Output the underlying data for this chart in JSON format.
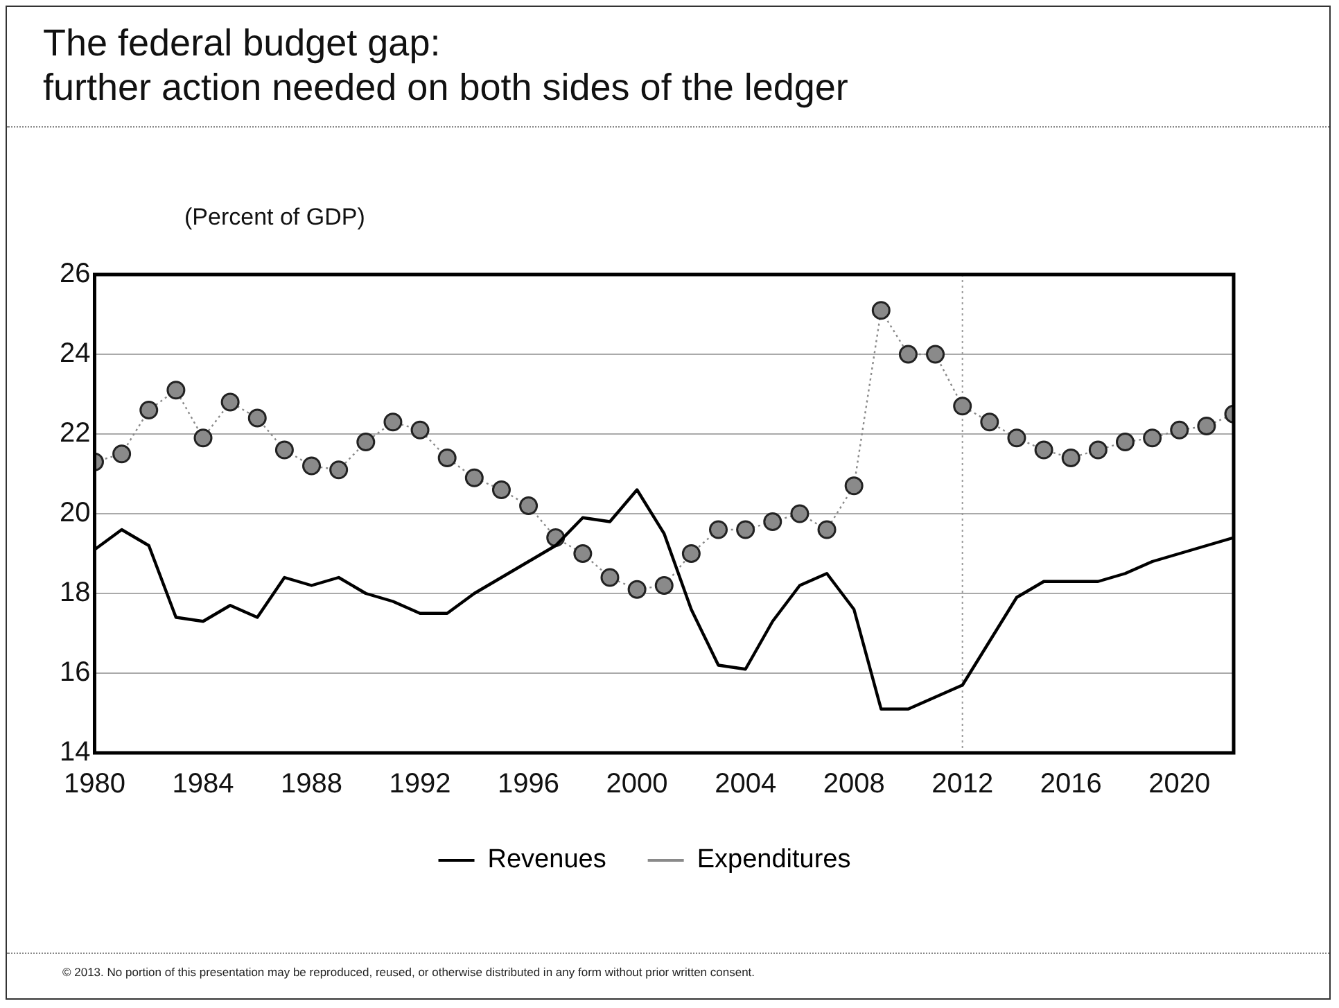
{
  "chart_data": {
    "type": "line",
    "title": "The federal budget gap:\nfurther action needed on both sides of the ledger",
    "ylabel": "(Percent of GDP)",
    "x": [
      1980,
      1981,
      1982,
      1983,
      1984,
      1985,
      1986,
      1987,
      1988,
      1989,
      1990,
      1991,
      1992,
      1993,
      1994,
      1995,
      1996,
      1997,
      1998,
      1999,
      2000,
      2001,
      2002,
      2003,
      2004,
      2005,
      2006,
      2007,
      2008,
      2009,
      2010,
      2011,
      2012,
      2013,
      2014,
      2015,
      2016,
      2017,
      2018,
      2019,
      2020,
      2021,
      2022
    ],
    "series": [
      {
        "name": "Revenues",
        "color": "#000000",
        "marker": "none",
        "line_style": "solid",
        "values": [
          19.1,
          19.6,
          19.2,
          17.4,
          17.3,
          17.7,
          17.4,
          18.4,
          18.2,
          18.4,
          18.0,
          17.8,
          17.5,
          17.5,
          18.0,
          18.4,
          18.8,
          19.2,
          19.9,
          19.8,
          20.6,
          19.5,
          17.6,
          16.2,
          16.1,
          17.3,
          18.2,
          18.5,
          17.6,
          15.1,
          15.1,
          15.4,
          15.7,
          16.8,
          17.9,
          18.3,
          18.3,
          18.3,
          18.5,
          18.8,
          19.0,
          19.2,
          19.4
        ]
      },
      {
        "name": "Expenditures",
        "color": "#8a8a8a",
        "marker": "circle",
        "line_style": "dotted",
        "values": [
          21.3,
          21.5,
          22.6,
          23.1,
          21.9,
          22.8,
          22.4,
          21.6,
          21.2,
          21.1,
          21.8,
          22.3,
          22.1,
          21.4,
          20.9,
          20.6,
          20.2,
          19.4,
          19.0,
          18.4,
          18.1,
          18.2,
          19.0,
          19.6,
          19.6,
          19.8,
          20.0,
          19.6,
          20.7,
          25.1,
          24.0,
          24.0,
          22.7,
          22.3,
          21.9,
          21.6,
          21.4,
          21.6,
          21.8,
          21.9,
          22.1,
          22.2,
          22.5
        ]
      }
    ],
    "xlim": [
      1980,
      2022
    ],
    "xticks": [
      1980,
      1984,
      1988,
      1992,
      1996,
      2000,
      2004,
      2008,
      2012,
      2016,
      2020
    ],
    "ylim": [
      14,
      26
    ],
    "yticks": [
      14,
      16,
      18,
      20,
      22,
      24,
      26
    ],
    "grid": "y",
    "legend": "bottom",
    "ref_lines": [
      {
        "axis": "x",
        "value": 2012,
        "color": "#999999",
        "line_style": "dotted"
      }
    ],
    "annotations": [
      "© 2013. No portion of this presentation may be reproduced, reused, or otherwise distributed in any form without prior written consent."
    ]
  }
}
